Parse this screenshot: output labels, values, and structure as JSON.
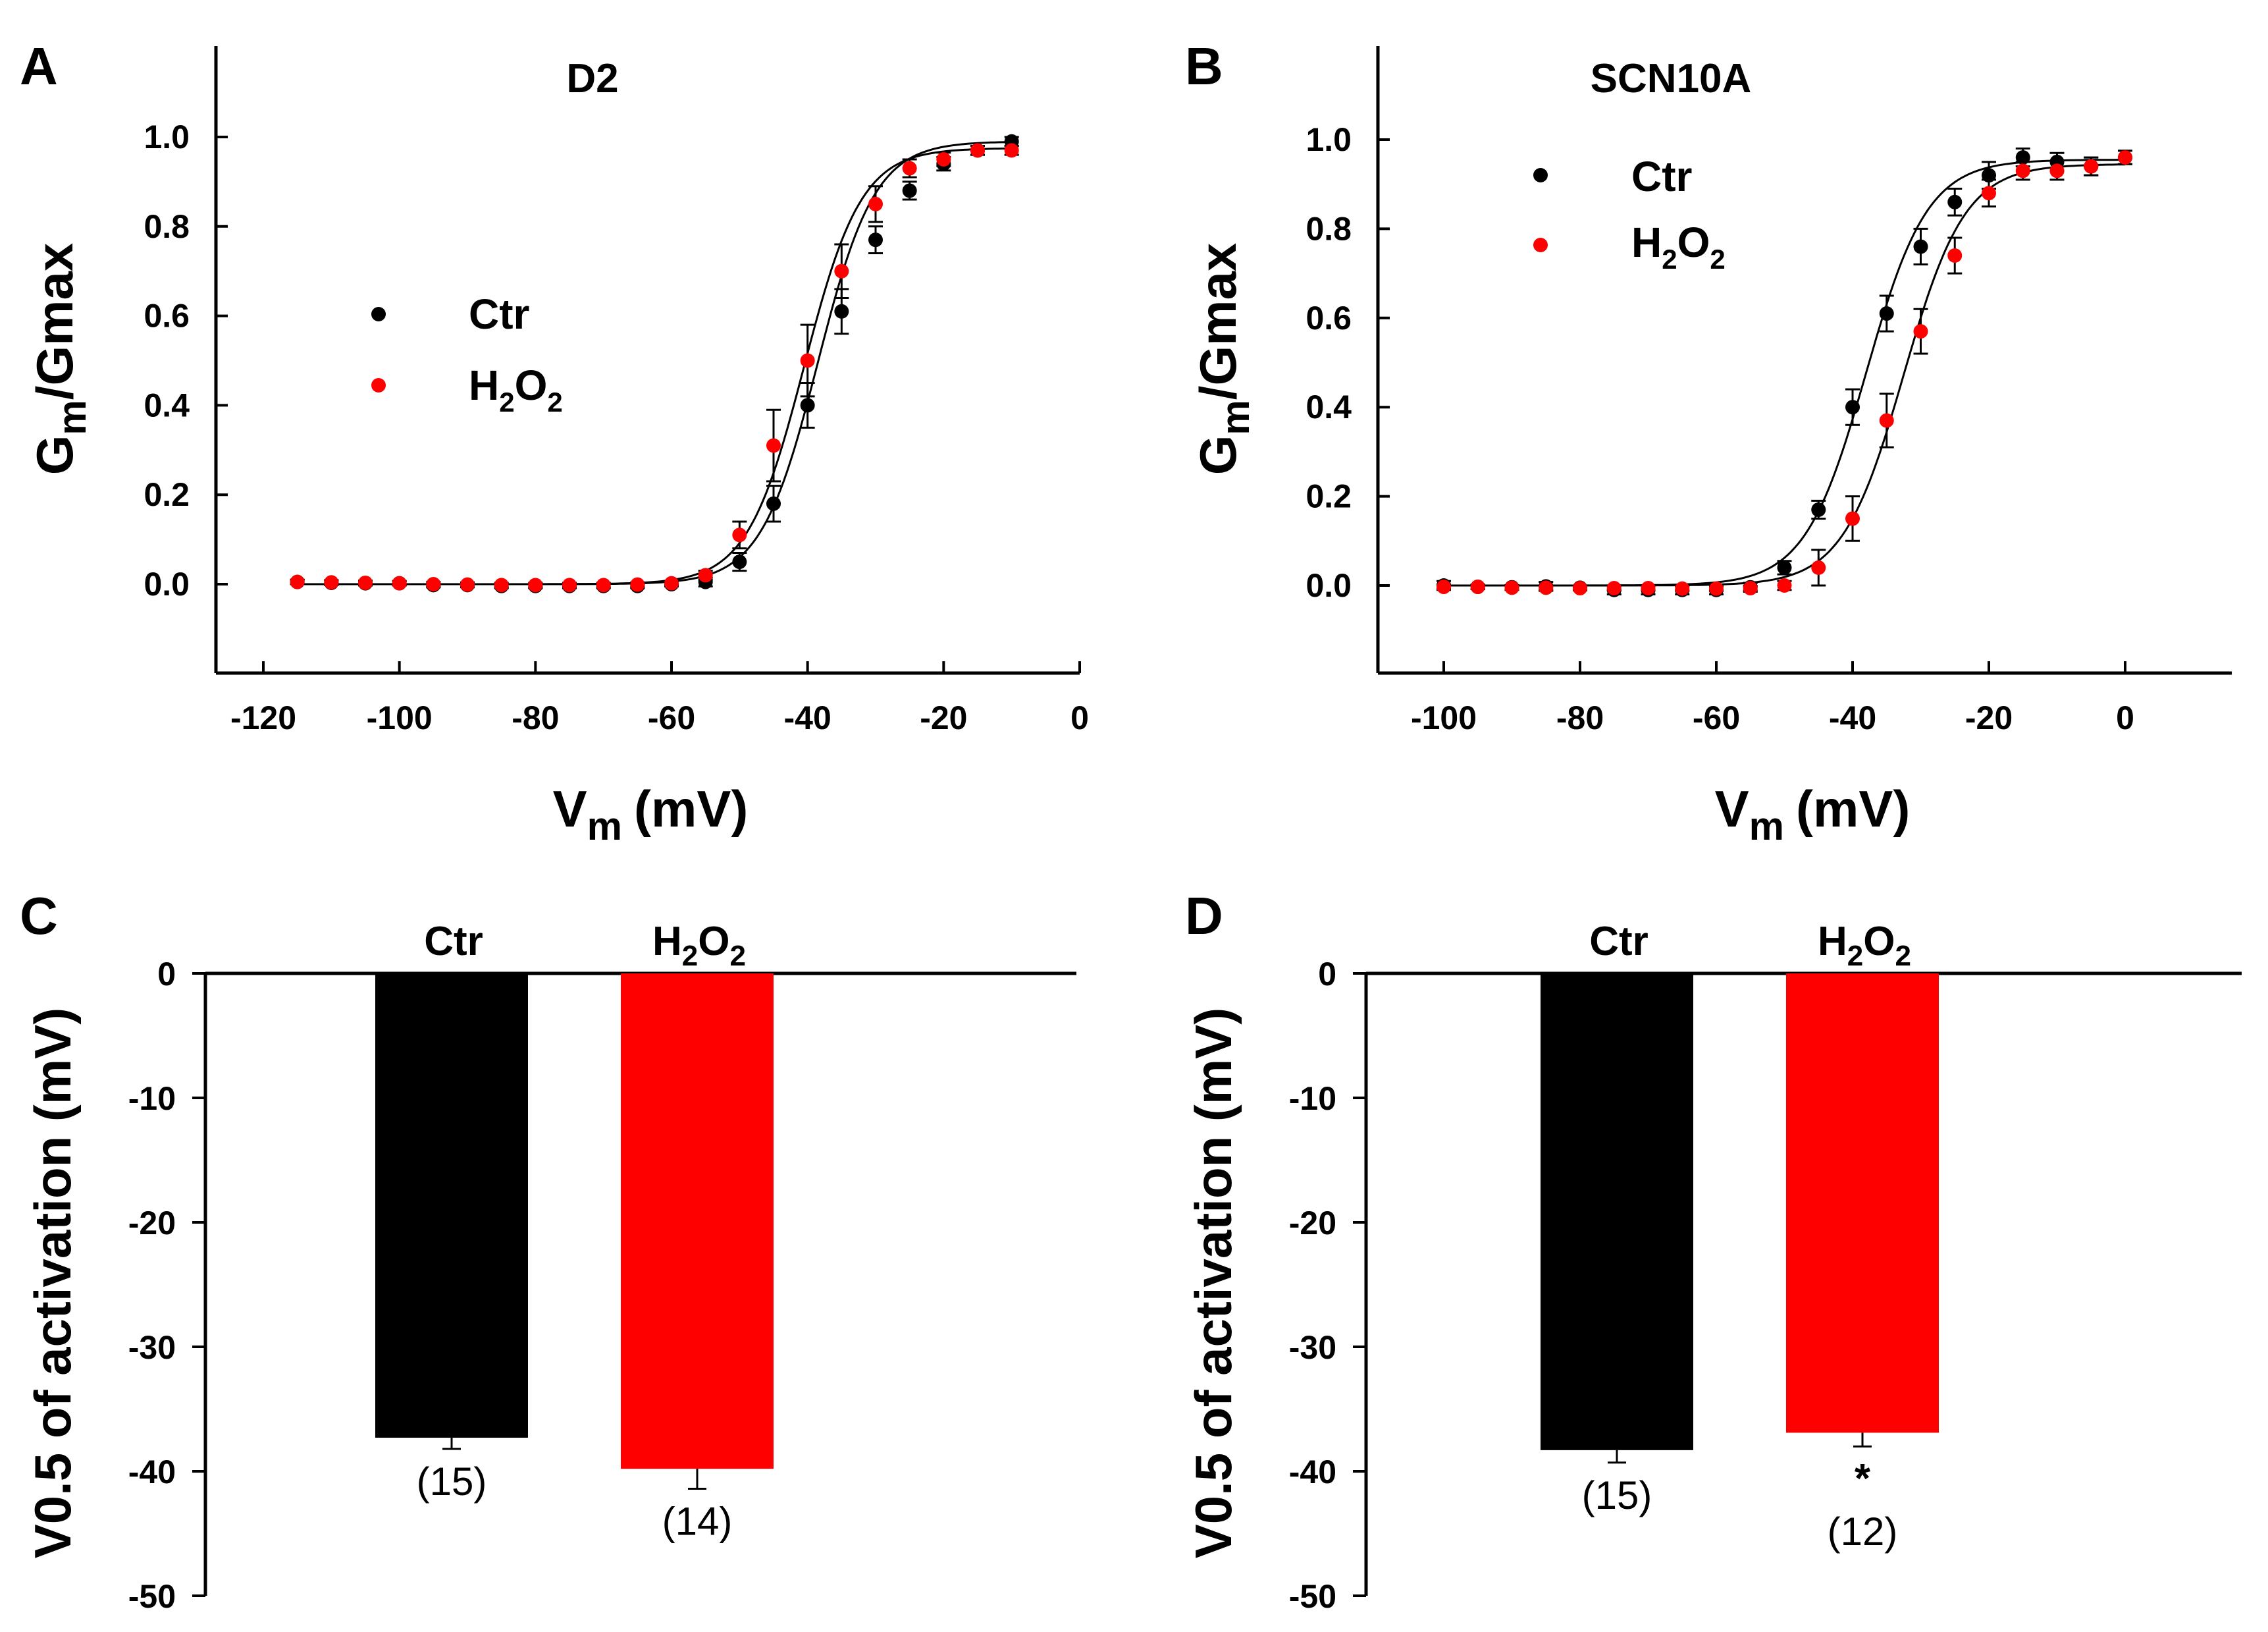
{
  "colors": {
    "ctr": "#000000",
    "h2o2": "#ff0000"
  },
  "chart_data": [
    {
      "panel": "A",
      "type": "scatter",
      "title": "D2",
      "xlabel": "Vm (mV)",
      "xlabel_main": "V",
      "xlabel_sub": "m",
      "xlabel_unit": "(mV)",
      "ylabel": "Gm/Gmax",
      "ylabel_g": "G",
      "ylabel_m": "m",
      "ylabel_rest": "/Gmax",
      "xlim": [
        -128,
        0
      ],
      "ylim": [
        -0.2,
        1.2
      ],
      "xticks": [
        -120,
        -100,
        -80,
        -60,
        -40,
        -20,
        0
      ],
      "xtick_labels": [
        "-120",
        "-100",
        "-80",
        "-60",
        "-40",
        "-20",
        "0"
      ],
      "yticks": [
        0.0,
        0.2,
        0.4,
        0.6,
        0.8,
        1.0
      ],
      "ytick_labels": [
        "0.0",
        "0.2",
        "0.4",
        "0.6",
        "0.8",
        "1.0"
      ],
      "legend": {
        "position": "middle-left",
        "ctr": "Ctr",
        "h2o2_main": "H",
        "h2o2_sub1": "2",
        "h2o2_mid": "O",
        "h2o2_sub2": "2"
      },
      "fit": [
        {
          "name": "Ctr",
          "v_half": -38.5,
          "k": 4.2,
          "gmax": 0.99
        },
        {
          "name": "H2O2",
          "v_half": -40.5,
          "k": 4.2,
          "gmax": 0.975
        }
      ],
      "series": [
        {
          "name": "Ctr",
          "x": [
            -115,
            -110,
            -105,
            -100,
            -95,
            -90,
            -85,
            -80,
            -75,
            -70,
            -65,
            -60,
            -55,
            -50,
            -45,
            -40,
            -35,
            -30,
            -25,
            -20,
            -15,
            -10
          ],
          "y": [
            0.005,
            0.003,
            0.002,
            0.002,
            -0.002,
            -0.002,
            -0.004,
            -0.004,
            -0.004,
            -0.004,
            -0.004,
            0.0,
            0.005,
            0.05,
            0.18,
            0.4,
            0.61,
            0.77,
            0.88,
            0.94,
            0.97,
            0.99
          ],
          "err": [
            0.005,
            0.005,
            0.005,
            0.005,
            0.005,
            0.005,
            0.005,
            0.005,
            0.005,
            0.005,
            0.005,
            0.005,
            0.01,
            0.02,
            0.04,
            0.05,
            0.05,
            0.03,
            0.02,
            0.015,
            0.01,
            0.01
          ]
        },
        {
          "name": "H2O2",
          "x": [
            -115,
            -110,
            -105,
            -100,
            -95,
            -90,
            -85,
            -80,
            -75,
            -70,
            -65,
            -60,
            -55,
            -50,
            -45,
            -40,
            -35,
            -30,
            -25,
            -20,
            -15,
            -10
          ],
          "y": [
            0.005,
            0.004,
            0.003,
            0.002,
            0.0,
            -0.001,
            -0.002,
            -0.002,
            -0.002,
            -0.002,
            -0.001,
            0.002,
            0.02,
            0.11,
            0.31,
            0.5,
            0.7,
            0.85,
            0.93,
            0.95,
            0.97,
            0.97
          ],
          "err": [
            0.005,
            0.005,
            0.005,
            0.005,
            0.005,
            0.005,
            0.005,
            0.005,
            0.005,
            0.005,
            0.005,
            0.005,
            0.01,
            0.03,
            0.08,
            0.08,
            0.06,
            0.04,
            0.02,
            0.015,
            0.01,
            0.01
          ]
        }
      ]
    },
    {
      "panel": "B",
      "type": "scatter",
      "title": "SCN10A",
      "xlabel": "Vm (mV)",
      "xlabel_main": "V",
      "xlabel_sub": "m",
      "xlabel_unit": "(mV)",
      "ylabel": "Gm/Gmax",
      "ylabel_g": "G",
      "ylabel_m": "m",
      "ylabel_rest": "/Gmax",
      "xlim": [
        -108,
        16
      ],
      "ylim": [
        -0.2,
        1.2
      ],
      "xticks": [
        -100,
        -80,
        -60,
        -40,
        -20,
        0
      ],
      "xtick_labels": [
        "-100",
        "-80",
        "-60",
        "-40",
        "-20",
        "0"
      ],
      "yticks": [
        0.0,
        0.2,
        0.4,
        0.6,
        0.8,
        1.0
      ],
      "ytick_labels": [
        "0.0",
        "0.2",
        "0.4",
        "0.6",
        "0.8",
        "1.0"
      ],
      "legend": {
        "position": "top-left",
        "ctr": "Ctr",
        "h2o2_main": "H",
        "h2o2_sub1": "2",
        "h2o2_mid": "O",
        "h2o2_sub2": "2"
      },
      "fit": [
        {
          "name": "Ctr",
          "v_half": -38.0,
          "k": 4.5,
          "gmax": 0.955
        },
        {
          "name": "H2O2",
          "v_half": -32.5,
          "k": 4.5,
          "gmax": 0.945
        }
      ],
      "series": [
        {
          "name": "Ctr",
          "x": [
            -100,
            -95,
            -90,
            -85,
            -80,
            -75,
            -70,
            -65,
            -60,
            -55,
            -50,
            -45,
            -40,
            -35,
            -30,
            -25,
            -20,
            -15,
            -10,
            -5,
            0
          ],
          "y": [
            0.0,
            -0.003,
            -0.004,
            -0.002,
            -0.005,
            -0.01,
            -0.01,
            -0.01,
            -0.01,
            -0.004,
            0.04,
            0.17,
            0.4,
            0.61,
            0.76,
            0.86,
            0.92,
            0.96,
            0.95,
            0.94,
            0.96
          ],
          "err": [
            0.01,
            0.005,
            0.005,
            0.01,
            0.005,
            0.01,
            0.01,
            0.01,
            0.01,
            0.01,
            0.015,
            0.02,
            0.04,
            0.04,
            0.04,
            0.03,
            0.03,
            0.02,
            0.02,
            0.02,
            0.015
          ]
        },
        {
          "name": "H2O2",
          "x": [
            -100,
            -95,
            -90,
            -85,
            -80,
            -75,
            -70,
            -65,
            -60,
            -55,
            -50,
            -45,
            -40,
            -35,
            -30,
            -25,
            -20,
            -15,
            -10,
            -5,
            0
          ],
          "y": [
            -0.003,
            -0.003,
            -0.005,
            -0.005,
            -0.006,
            -0.006,
            -0.006,
            -0.007,
            -0.007,
            -0.006,
            0.0,
            0.04,
            0.15,
            0.37,
            0.57,
            0.74,
            0.88,
            0.93,
            0.93,
            0.94,
            0.96
          ],
          "err": [
            0.005,
            0.005,
            0.005,
            0.005,
            0.005,
            0.005,
            0.005,
            0.005,
            0.005,
            0.005,
            0.01,
            0.04,
            0.05,
            0.06,
            0.05,
            0.04,
            0.03,
            0.02,
            0.02,
            0.02,
            0.015
          ]
        }
      ]
    },
    {
      "panel": "C",
      "type": "bar",
      "ylabel": "V0.5 of activation (mV)",
      "ylim": [
        -50,
        0
      ],
      "yticks": [
        0,
        -10,
        -20,
        -30,
        -40,
        -50
      ],
      "ytick_labels": [
        "0",
        "-10",
        "-20",
        "-30",
        "-40",
        "-50"
      ],
      "bars": [
        {
          "name": "Ctr",
          "label_main": "Ctr",
          "label_sub1": "",
          "label_mid": "",
          "label_sub2": "",
          "value": -37.3,
          "err": 0.9,
          "n_label": "(15)",
          "significance": ""
        },
        {
          "name": "H2O2",
          "label_main": "H",
          "label_sub1": "2",
          "label_mid": "O",
          "label_sub2": "2",
          "value": -39.8,
          "err": 1.6,
          "n_label": "(14)",
          "significance": ""
        }
      ]
    },
    {
      "panel": "D",
      "type": "bar",
      "ylabel": "V0.5 of activation (mV)",
      "ylim": [
        -50,
        0
      ],
      "yticks": [
        0,
        -10,
        -20,
        -30,
        -40,
        -50
      ],
      "ytick_labels": [
        "0",
        "-10",
        "-20",
        "-30",
        "-40",
        "-50"
      ],
      "bars": [
        {
          "name": "Ctr",
          "label_main": "Ctr",
          "label_sub1": "",
          "label_mid": "",
          "label_sub2": "",
          "value": -38.3,
          "err": 1.0,
          "n_label": "(15)",
          "significance": ""
        },
        {
          "name": "H2O2",
          "label_main": "H",
          "label_sub1": "2",
          "label_mid": "O",
          "label_sub2": "2",
          "value": -36.9,
          "err": 1.1,
          "n_label": "(12)",
          "significance": "*"
        }
      ]
    }
  ]
}
